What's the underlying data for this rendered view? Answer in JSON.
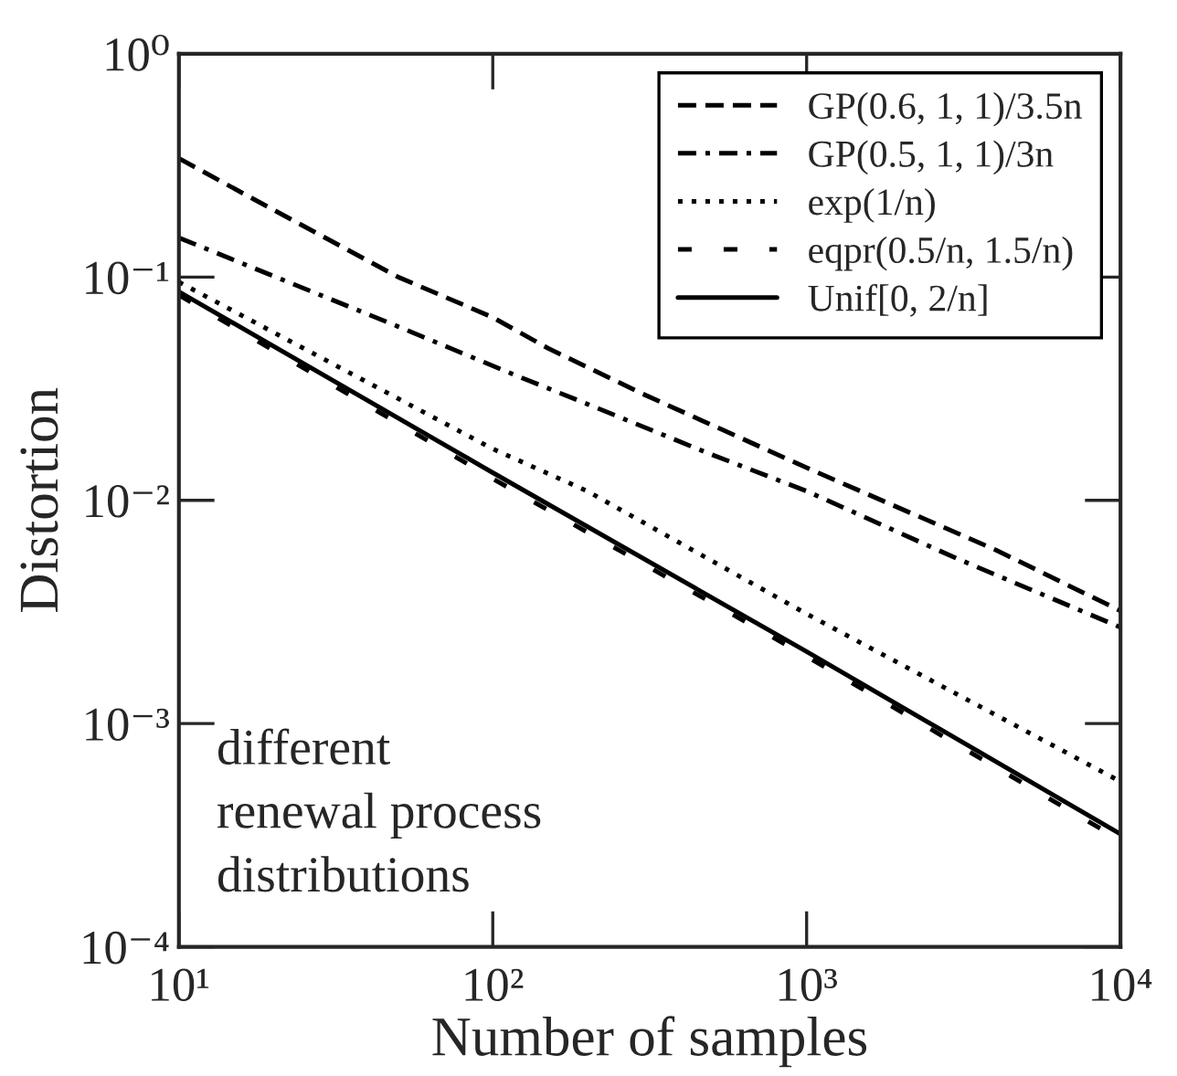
{
  "chart_data": {
    "type": "line",
    "xlabel": "Number of samples",
    "ylabel": "Distortion",
    "log": "xy",
    "grid": false,
    "legend": "top right",
    "marker": "none",
    "xlim": [
      10,
      10000
    ],
    "ylim": [
      0.0001,
      1
    ],
    "xticks": [
      {
        "value": 10,
        "label": "10¹"
      },
      {
        "value": 100,
        "label": "10²"
      },
      {
        "value": 1000,
        "label": "10³"
      },
      {
        "value": 10000,
        "label": "10⁴"
      }
    ],
    "yticks": [
      {
        "value": 0.0001,
        "label": "10⁻⁴"
      },
      {
        "value": 0.001,
        "label": "10⁻³"
      },
      {
        "value": 0.01,
        "label": "10⁻²"
      },
      {
        "value": 0.1,
        "label": "10⁻¹"
      },
      {
        "value": 1,
        "label": "10⁰"
      }
    ],
    "annotations": [
      "different\nrenewal process\ndistributions"
    ],
    "series": [
      {
        "name": "GP(0.6, 1, 1)/3.5n",
        "color": "#000000",
        "line_style": "dashed",
        "x": [
          10,
          20,
          50,
          100,
          150,
          300,
          1000,
          4000,
          10000
        ],
        "values": [
          0.34,
          0.2,
          0.1,
          0.066,
          0.048,
          0.03,
          0.014,
          0.006,
          0.0032
        ]
      },
      {
        "name": "GP(0.5, 1, 1)/3n",
        "color": "#000000",
        "line_style": "dashdot",
        "x": [
          10,
          50,
          120,
          200,
          500,
          1000,
          3000,
          10000
        ],
        "values": [
          0.15,
          0.06,
          0.036,
          0.027,
          0.016,
          0.011,
          0.0055,
          0.0027
        ]
      },
      {
        "name": "exp(1/n)",
        "color": "#000000",
        "line_style": "dotted",
        "x": [
          10,
          100,
          200,
          1000,
          10000
        ],
        "values": [
          0.095,
          0.017,
          0.011,
          0.0031,
          0.00055
        ]
      },
      {
        "name": "eqpr(0.5/n, 1.5/n)",
        "color": "#000000",
        "line_style": "loosely dashed",
        "x": [
          10,
          100,
          1000,
          10000
        ],
        "values": [
          0.083,
          0.0125,
          0.002,
          0.0003
        ]
      },
      {
        "name": "Unif[0, 2/n]",
        "color": "#000000",
        "line_style": "solid",
        "x": [
          10,
          100,
          1000,
          10000
        ],
        "values": [
          0.086,
          0.0133,
          0.0021,
          0.00032
        ]
      }
    ]
  }
}
